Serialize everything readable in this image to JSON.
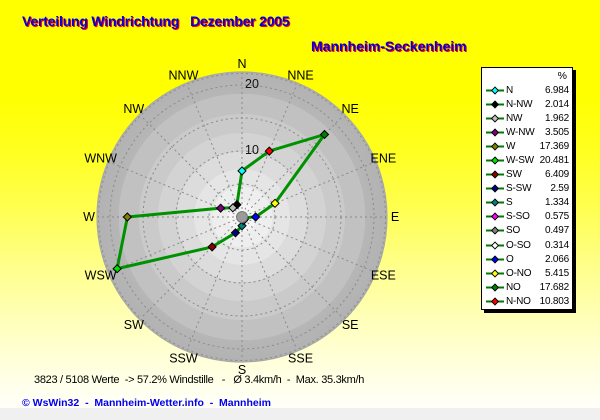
{
  "header": {
    "title": "Verteilung Windrichtung   Dezember 2005",
    "station": "Mannheim-Seckenheim"
  },
  "status_line": "3823 / 5108 Werte  -> 57.2% Windstille   -   Ø 3.4km/h  -  Max. 35.3km/h",
  "footer_credits": "© WsWin32  -  Mannheim-Wetter.info  -  Mannheim",
  "legend": {
    "unit_header": "%"
  },
  "colors": {
    "title_blue": "#0000dd",
    "title_shadow_red": "#ff0000",
    "footer_blue": "#0000ee",
    "polygon_green": "#009100",
    "legend_line_green": "#007a00",
    "grid_gray": "#8a8a8a",
    "center_marker_gray": "#9b9b9b"
  },
  "chart_data": {
    "type": "radar",
    "title": "Verteilung Windrichtung Dezember 2005",
    "units": "%",
    "r_axis_ticks": [
      10,
      20
    ],
    "grid_circles": [
      5,
      10,
      15,
      20
    ],
    "r_max": 22,
    "ring_labels": [
      "N",
      "NNE",
      "NE",
      "ENE",
      "E",
      "ESE",
      "SE",
      "SSE",
      "S",
      "SSW",
      "SW",
      "WSW",
      "W",
      "WNW",
      "NW",
      "NNW"
    ],
    "series": [
      {
        "label": "N",
        "value": 6.984,
        "color": "#00ffff",
        "angle": 0
      },
      {
        "label": "N-NW",
        "value": 2.014,
        "color": "#000000",
        "angle": 337.5
      },
      {
        "label": "NW",
        "value": 1.962,
        "color": "#c0c0c0",
        "angle": 315
      },
      {
        "label": "W-NW",
        "value": 3.505,
        "color": "#800080",
        "angle": 292.5
      },
      {
        "label": "W",
        "value": 17.369,
        "color": "#808000",
        "angle": 270
      },
      {
        "label": "W-SW",
        "value": 20.481,
        "color": "#00e000",
        "angle": 247.5
      },
      {
        "label": "SW",
        "value": 6.409,
        "color": "#8b0000",
        "angle": 225
      },
      {
        "label": "S-SW",
        "value": 2.59,
        "color": "#000080",
        "angle": 202.5
      },
      {
        "label": "S",
        "value": 1.334,
        "color": "#008080",
        "angle": 180
      },
      {
        "label": "S-SO",
        "value": 0.575,
        "color": "#ff00ff",
        "angle": 157.5
      },
      {
        "label": "SO",
        "value": 0.497,
        "color": "#808080",
        "angle": 135
      },
      {
        "label": "O-SO",
        "value": 0.314,
        "color": "#ffffff",
        "angle": 112.5
      },
      {
        "label": "O",
        "value": 2.066,
        "color": "#0000ff",
        "angle": 90
      },
      {
        "label": "O-NO",
        "value": 5.415,
        "color": "#ffff00",
        "angle": 67.5
      },
      {
        "label": "NO",
        "value": 17.682,
        "color": "#008000",
        "angle": 45
      },
      {
        "label": "N-NO",
        "value": 10.803,
        "color": "#ff0000",
        "angle": 22.5
      }
    ]
  }
}
